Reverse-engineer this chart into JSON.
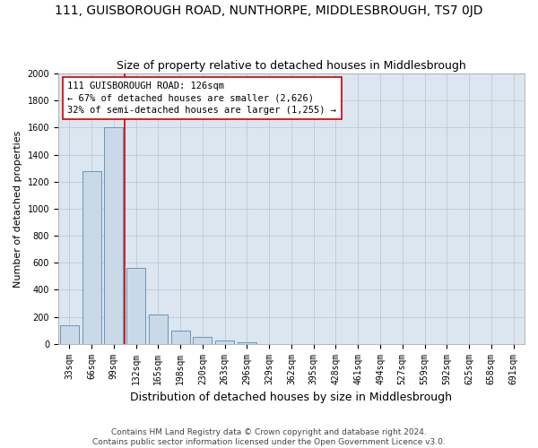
{
  "title": "111, GUISBOROUGH ROAD, NUNTHORPE, MIDDLESBROUGH, TS7 0JD",
  "subtitle": "Size of property relative to detached houses in Middlesbrough",
  "xlabel": "Distribution of detached houses by size in Middlesbrough",
  "ylabel": "Number of detached properties",
  "footer_line1": "Contains HM Land Registry data © Crown copyright and database right 2024.",
  "footer_line2": "Contains public sector information licensed under the Open Government Licence v3.0.",
  "categories": [
    "33sqm",
    "66sqm",
    "99sqm",
    "132sqm",
    "165sqm",
    "198sqm",
    "230sqm",
    "263sqm",
    "296sqm",
    "329sqm",
    "362sqm",
    "395sqm",
    "428sqm",
    "461sqm",
    "494sqm",
    "527sqm",
    "559sqm",
    "592sqm",
    "625sqm",
    "658sqm",
    "691sqm"
  ],
  "values": [
    140,
    1280,
    1600,
    560,
    220,
    95,
    48,
    25,
    12,
    0,
    0,
    0,
    0,
    0,
    0,
    0,
    0,
    0,
    0,
    0,
    0
  ],
  "bar_color": "#c9d9e8",
  "bar_edge_color": "#5a8ab0",
  "property_line_color": "#cc0000",
  "annotation_text": "111 GUISBOROUGH ROAD: 126sqm\n← 67% of detached houses are smaller (2,626)\n32% of semi-detached houses are larger (1,255) →",
  "annotation_box_facecolor": "#ffffff",
  "annotation_box_edgecolor": "#cc0000",
  "ylim": [
    0,
    2000
  ],
  "yticks": [
    0,
    200,
    400,
    600,
    800,
    1000,
    1200,
    1400,
    1600,
    1800,
    2000
  ],
  "grid_color": "#c0c8d8",
  "ax_bg_color": "#dce6f0",
  "fig_bg_color": "#ffffff",
  "title_fontsize": 10,
  "subtitle_fontsize": 9,
  "footer_fontsize": 6.5,
  "ylabel_fontsize": 8,
  "xlabel_fontsize": 9,
  "tick_fontsize": 7
}
